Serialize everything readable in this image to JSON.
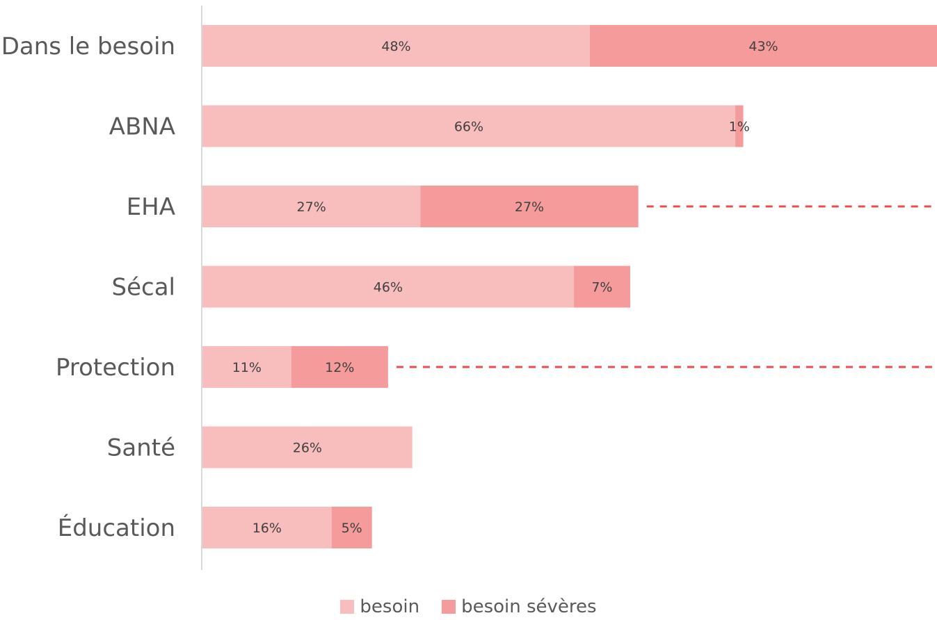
{
  "chart_data": {
    "type": "bar",
    "orientation": "horizontal",
    "stacked": true,
    "categories": [
      "Dans le besoin",
      "ABNA",
      "EHA",
      "Sécal",
      "Protection",
      "Santé",
      "Éducation"
    ],
    "series": [
      {
        "name": "besoin",
        "values": [
          48,
          66,
          27,
          46,
          11,
          26,
          16
        ],
        "labels": [
          "48%",
          "66%",
          "27%",
          "46%",
          "11%",
          "26%",
          "16%"
        ],
        "color": "#F8BDBD"
      },
      {
        "name": "besoin sévères",
        "values": [
          43,
          1,
          27,
          7,
          12,
          0,
          5
        ],
        "labels": [
          "43%",
          "1%",
          "27%",
          "7%",
          "12%",
          "",
          "5%"
        ],
        "color": "#F59B9B"
      }
    ],
    "xlim": [
      0,
      91
    ],
    "grid": false,
    "legend_position": "bottom",
    "reference_lines": [
      "EHA",
      "Protection"
    ],
    "reference_line_color": "#E84C4C"
  }
}
